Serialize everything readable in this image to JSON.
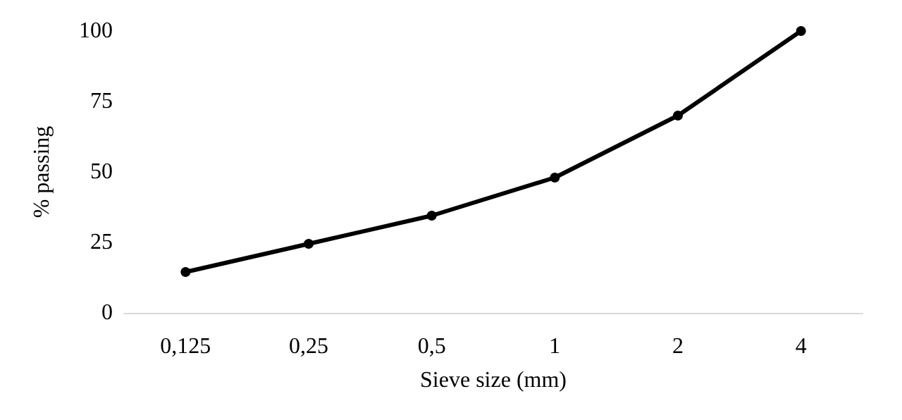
{
  "chart_data": {
    "type": "line",
    "xlabel": "Sieve size (mm)",
    "ylabel": "% passing",
    "categories": [
      "0,125",
      "0,25",
      "0,5",
      "1",
      "2",
      "4"
    ],
    "series": [
      {
        "color": "#000000",
        "values": [
          14.5,
          24.5,
          34.5,
          48,
          70,
          100
        ]
      }
    ],
    "ylim": [
      0,
      100
    ],
    "yticks": [
      0,
      25,
      50,
      75,
      100
    ],
    "grid": false,
    "marker": "circle",
    "line_style": "solid"
  }
}
